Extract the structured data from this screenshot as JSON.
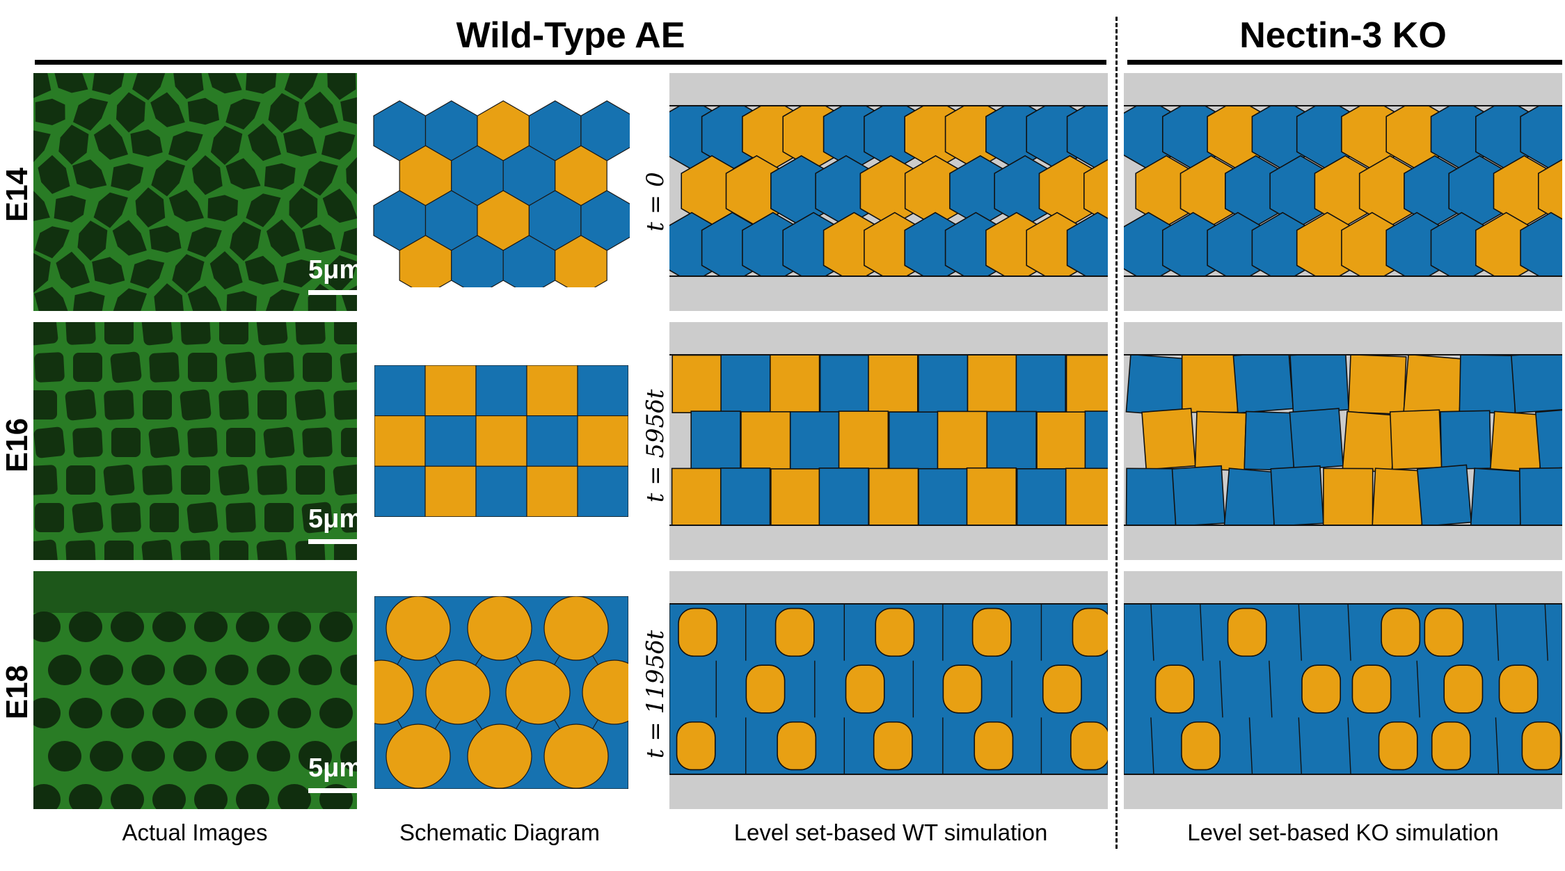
{
  "headers": {
    "wild_type": "Wild-Type AE",
    "knockout": "Nectin-3 KO"
  },
  "rows": [
    {
      "stage": "E14",
      "time_label": "t = 0",
      "scale_label": "5μm"
    },
    {
      "stage": "E16",
      "time_label": "t = 595δt",
      "scale_label": "5μm"
    },
    {
      "stage": "E18",
      "time_label": "t = 1195δt",
      "scale_label": "5μm"
    }
  ],
  "captions": {
    "actual": "Actual Images",
    "schematic": "Schematic Diagram",
    "wt_sim": "Level set-based WT simulation",
    "ko_sim": "Level set-based KO simulation"
  },
  "colors": {
    "cell_blue": "#1672b0",
    "cell_orange": "#e8a013",
    "background_gray": "#cccccc",
    "microscopy_green": "#3fbf3a",
    "microscopy_dark": "#0f2a0d"
  },
  "schematic_patterns": {
    "hexagonal": [
      [
        "blue",
        "blue",
        "orange",
        "blue",
        "blue"
      ],
      [
        "orange",
        "blue",
        "blue",
        "orange"
      ],
      [
        "blue",
        "blue",
        "orange",
        "blue",
        "blue"
      ],
      [
        "orange",
        "blue",
        "blue",
        "orange"
      ]
    ],
    "checkerboard": [
      [
        "blue",
        "orange",
        "blue",
        "orange",
        "blue"
      ],
      [
        "orange",
        "blue",
        "orange",
        "blue",
        "orange"
      ],
      [
        "blue",
        "orange",
        "blue",
        "orange",
        "blue"
      ]
    ],
    "circles": [
      [
        "orange",
        "orange",
        "orange"
      ],
      [
        "orange",
        "orange",
        "orange",
        "orange"
      ],
      [
        "orange",
        "orange",
        "orange"
      ]
    ]
  },
  "simulation_patterns": {
    "wt": [
      [
        [
          "blue",
          "blue",
          "orange",
          "orange",
          "blue",
          "blue",
          "orange",
          "orange",
          "blue",
          "blue",
          "blue"
        ],
        [
          "orange",
          "orange",
          "blue",
          "blue",
          "orange",
          "orange",
          "blue",
          "blue",
          "orange",
          "orange"
        ],
        [
          "blue",
          "blue",
          "blue",
          "blue",
          "orange",
          "orange",
          "blue",
          "blue",
          "orange",
          "orange",
          "blue"
        ]
      ],
      [
        [
          "orange",
          "blue",
          "orange",
          "blue",
          "orange",
          "blue",
          "orange",
          "blue",
          "orange"
        ],
        [
          "blue",
          "orange",
          "blue",
          "orange",
          "blue",
          "orange",
          "blue",
          "orange",
          "blue"
        ],
        [
          "orange",
          "blue",
          "orange",
          "blue",
          "orange",
          "blue",
          "orange",
          "blue",
          "orange"
        ]
      ],
      [
        [
          "orange",
          "blue",
          "orange",
          "blue",
          "orange",
          "blue",
          "orange",
          "blue",
          "orange"
        ],
        [
          "blue",
          "orange",
          "blue",
          "orange",
          "blue",
          "orange",
          "blue",
          "orange",
          "blue"
        ],
        [
          "orange",
          "blue",
          "orange",
          "blue",
          "orange",
          "blue",
          "orange",
          "blue",
          "orange"
        ]
      ]
    ],
    "ko": [
      [
        [
          "blue",
          "blue",
          "orange",
          "blue",
          "blue",
          "orange",
          "orange",
          "blue",
          "blue",
          "blue"
        ],
        [
          "orange",
          "orange",
          "blue",
          "blue",
          "orange",
          "orange",
          "blue",
          "blue",
          "orange",
          "orange"
        ],
        [
          "blue",
          "blue",
          "blue",
          "blue",
          "orange",
          "orange",
          "blue",
          "blue",
          "orange",
          "blue"
        ]
      ],
      [
        [
          "blue",
          "orange",
          "blue",
          "blue",
          "orange",
          "orange",
          "blue",
          "blue"
        ],
        [
          "orange",
          "orange",
          "blue",
          "blue",
          "orange",
          "orange",
          "blue",
          "orange",
          "blue"
        ],
        [
          "blue",
          "blue",
          "blue",
          "blue",
          "orange",
          "orange",
          "blue",
          "blue",
          "blue"
        ]
      ],
      [
        [
          "blue",
          "blue",
          "orange",
          "blue",
          "blue",
          "orange",
          "orange",
          "blue",
          "blue"
        ],
        [
          "orange",
          "blue",
          "blue",
          "orange",
          "orange",
          "blue",
          "orange",
          "orange",
          "blue"
        ],
        [
          "blue",
          "orange",
          "blue",
          "blue",
          "blue",
          "orange",
          "orange",
          "blue",
          "orange"
        ]
      ]
    ]
  }
}
